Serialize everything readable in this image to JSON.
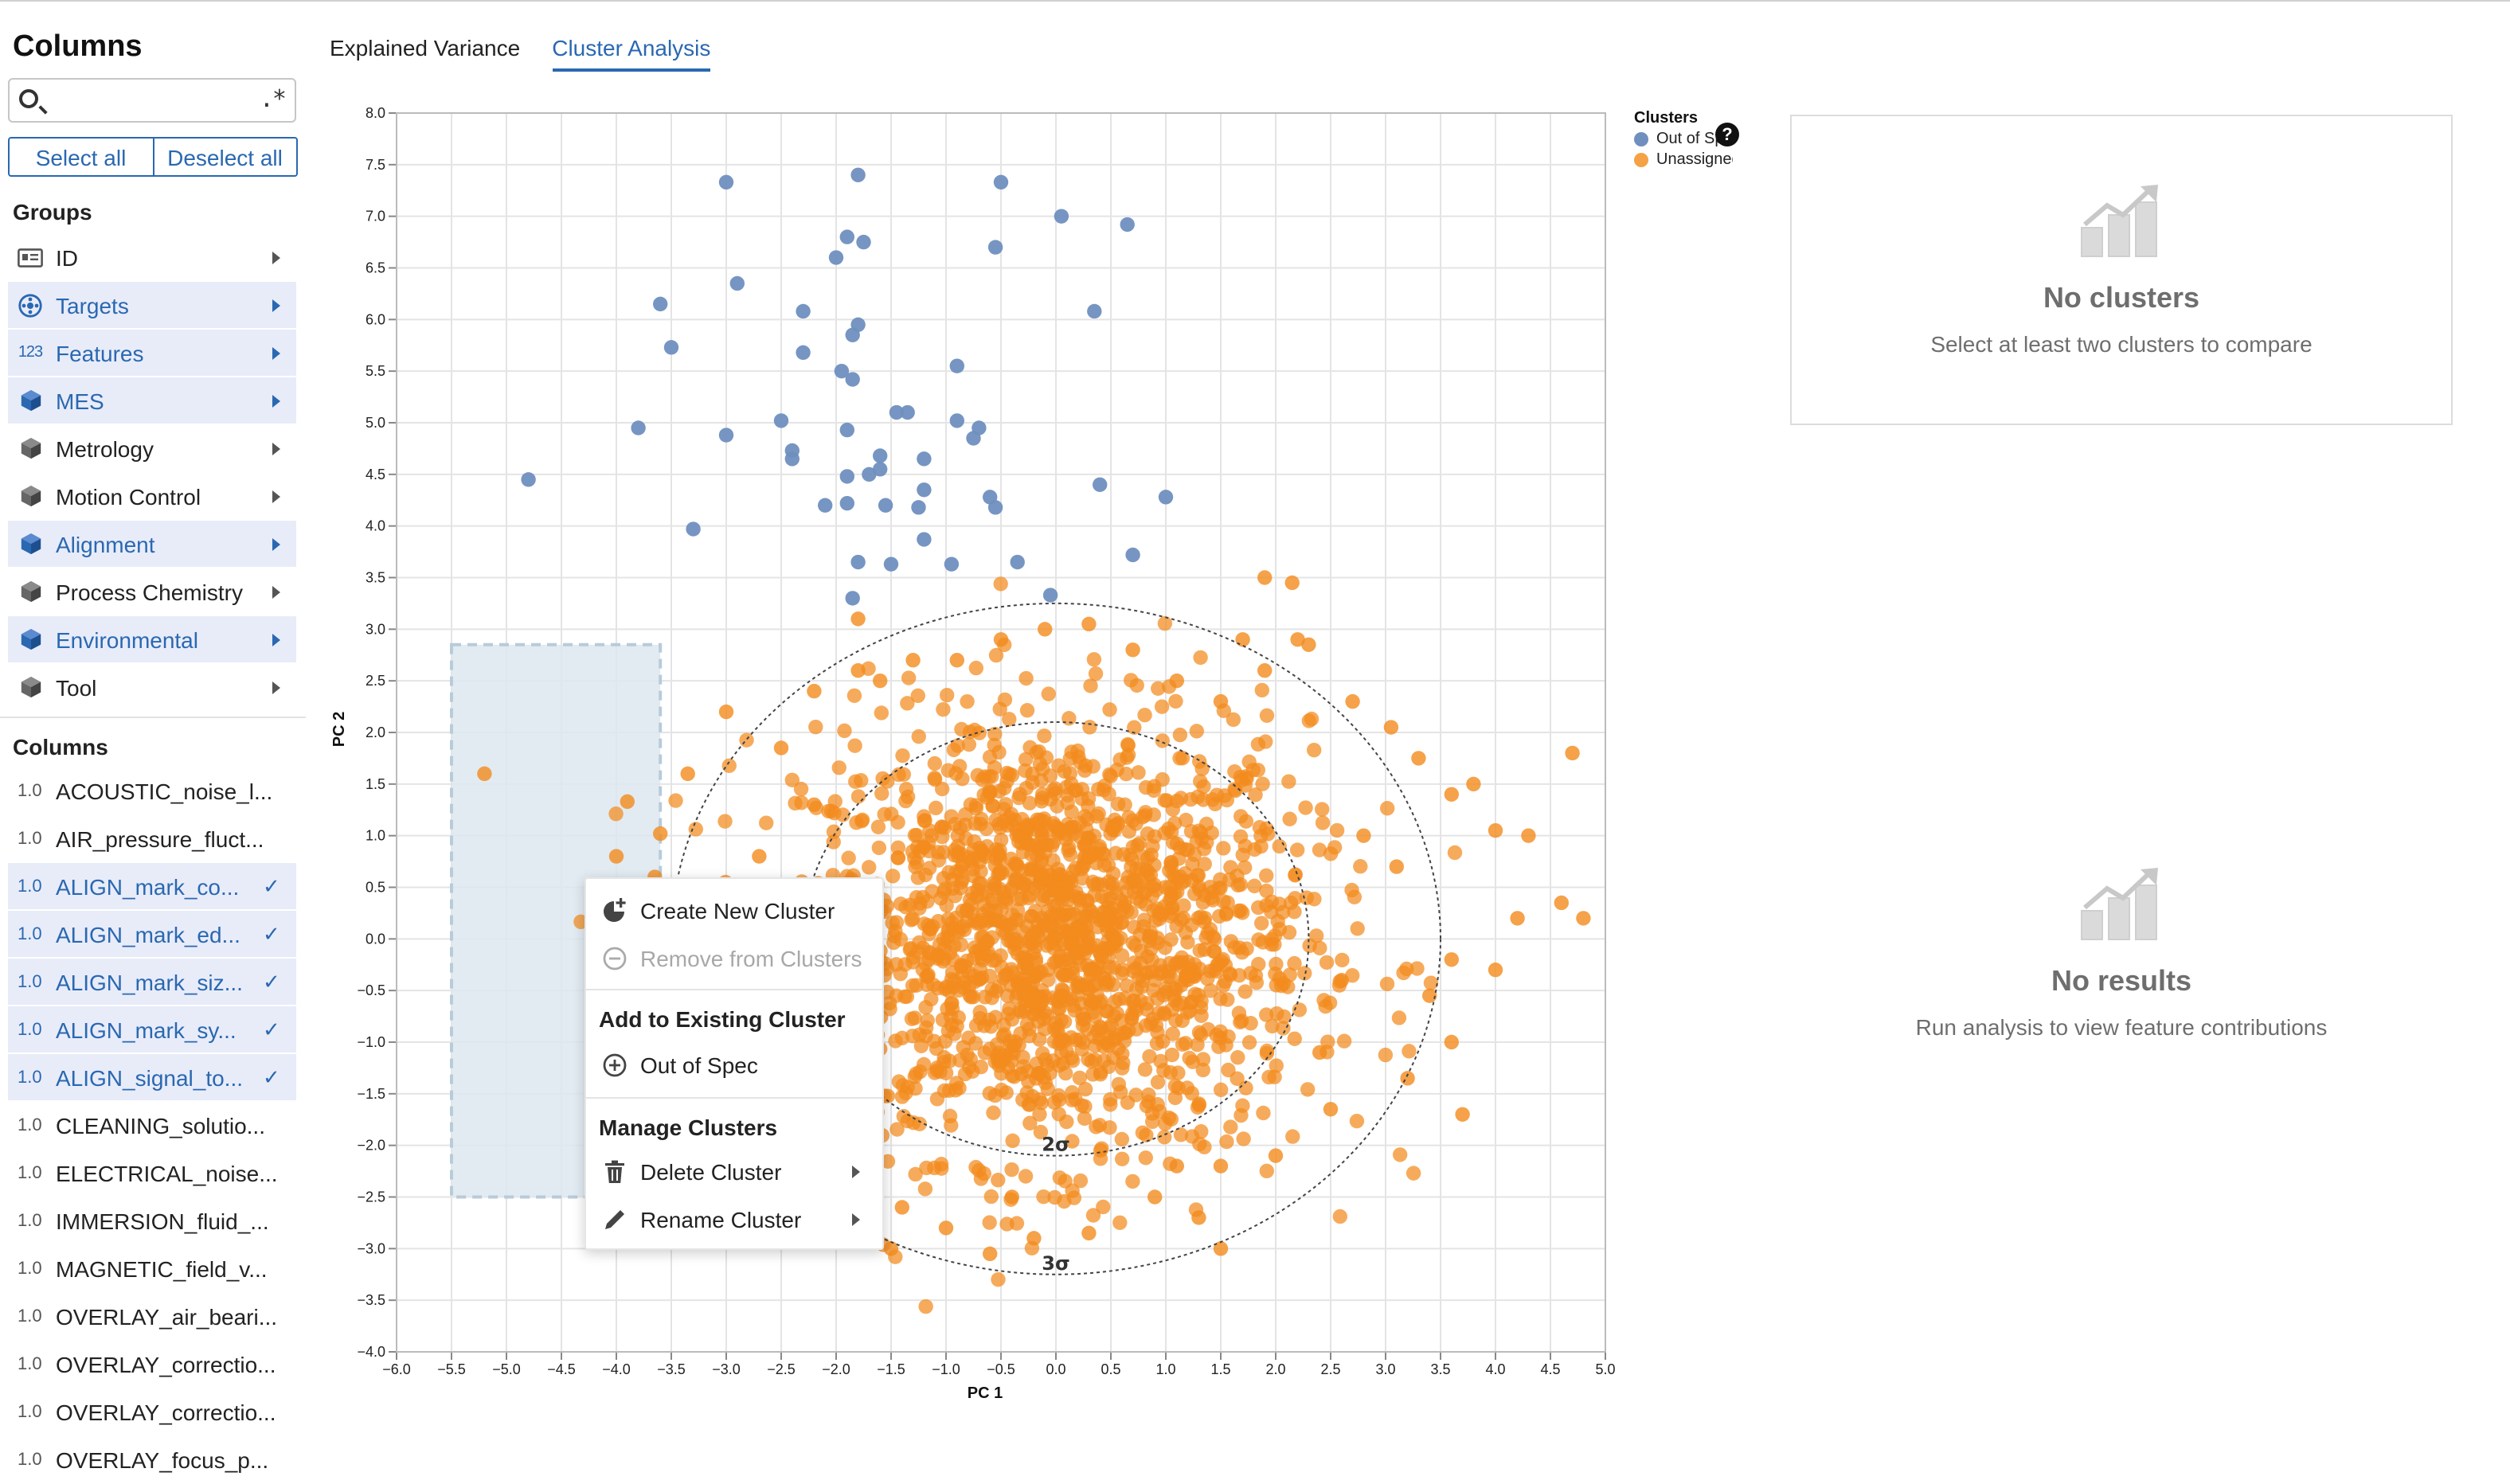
{
  "sidebar": {
    "title": "Columns",
    "search_placeholder": "",
    "regex_label": ".*",
    "select_all": "Select all",
    "deselect_all": "Deselect all",
    "groups_label": "Groups",
    "columns_label": "Columns",
    "groups": [
      {
        "label": "ID",
        "icon": "id-card-icon",
        "selected": false
      },
      {
        "label": "Targets",
        "icon": "target-icon",
        "selected": true
      },
      {
        "label": "Features",
        "icon": "numeric-icon",
        "icon_text": "123",
        "selected": true
      },
      {
        "label": "MES",
        "icon": "cube-icon",
        "selected": true
      },
      {
        "label": "Metrology",
        "icon": "cube-icon",
        "selected": false
      },
      {
        "label": "Motion Control",
        "icon": "cube-icon",
        "selected": false
      },
      {
        "label": "Alignment",
        "icon": "cube-icon",
        "selected": true
      },
      {
        "label": "Process Chemistry",
        "icon": "cube-icon",
        "selected": false
      },
      {
        "label": "Environmental",
        "icon": "cube-icon",
        "selected": true
      },
      {
        "label": "Tool",
        "icon": "cube-icon",
        "selected": false
      }
    ],
    "columns": [
      {
        "type": "1.0",
        "label": "ACOUSTIC_noise_l...",
        "selected": false
      },
      {
        "type": "1.0",
        "label": "AIR_pressure_fluct...",
        "selected": false
      },
      {
        "type": "1.0",
        "label": "ALIGN_mark_co...",
        "selected": true
      },
      {
        "type": "1.0",
        "label": "ALIGN_mark_ed...",
        "selected": true
      },
      {
        "type": "1.0",
        "label": "ALIGN_mark_siz...",
        "selected": true
      },
      {
        "type": "1.0",
        "label": "ALIGN_mark_sy...",
        "selected": true
      },
      {
        "type": "1.0",
        "label": "ALIGN_signal_to...",
        "selected": true
      },
      {
        "type": "1.0",
        "label": "CLEANING_solutio...",
        "selected": false
      },
      {
        "type": "1.0",
        "label": "ELECTRICAL_noise...",
        "selected": false
      },
      {
        "type": "1.0",
        "label": "IMMERSION_fluid_...",
        "selected": false
      },
      {
        "type": "1.0",
        "label": "MAGNETIC_field_v...",
        "selected": false
      },
      {
        "type": "1.0",
        "label": "OVERLAY_air_beari...",
        "selected": false
      },
      {
        "type": "1.0",
        "label": "OVERLAY_correctio...",
        "selected": false
      },
      {
        "type": "1.0",
        "label": "OVERLAY_correctio...",
        "selected": false
      },
      {
        "type": "1.0",
        "label": "OVERLAY_focus_p...",
        "selected": false
      }
    ]
  },
  "tabs": [
    {
      "label": "Explained Variance",
      "active": false
    },
    {
      "label": "Cluster Analysis",
      "active": true
    }
  ],
  "legend": {
    "title": "Clusters",
    "items": [
      {
        "label": "Out of Spec",
        "color": "#6f8fbf"
      },
      {
        "label": "Unassigned",
        "color": "#f5a146"
      }
    ]
  },
  "context_menu": {
    "create": "Create New Cluster",
    "remove": "Remove from Clusters",
    "add_header": "Add to Existing Cluster",
    "add_items": [
      "Out of Spec"
    ],
    "manage_header": "Manage Clusters",
    "delete": "Delete Cluster",
    "rename": "Rename Cluster"
  },
  "panels": {
    "clusters": {
      "title": "No clusters",
      "subtitle": "Select at least two clusters to compare"
    },
    "results": {
      "title": "No results",
      "subtitle": "Run analysis to view feature contributions"
    }
  },
  "colors": {
    "accent": "#2a68b1",
    "out_of_spec": "#6f8fbf",
    "unassigned": "#f28b1d",
    "selection_fill": "#dde8f0"
  },
  "chart_data": {
    "type": "scatter",
    "xlabel": "PC 1",
    "ylabel": "PC 2",
    "xlim": [
      -6.0,
      5.0
    ],
    "ylim": [
      -4.0,
      8.0
    ],
    "xticks": [
      -6.0,
      -5.5,
      -5.0,
      -4.5,
      -4.0,
      -3.5,
      -3.0,
      -2.5,
      -2.0,
      -1.5,
      -1.0,
      -0.5,
      0.0,
      0.5,
      1.0,
      1.5,
      2.0,
      2.5,
      3.0,
      3.5,
      4.0,
      4.5,
      5.0
    ],
    "yticks": [
      -4.0,
      -3.5,
      -3.0,
      -2.5,
      -2.0,
      -1.5,
      -1.0,
      -0.5,
      0.0,
      0.5,
      1.0,
      1.5,
      2.0,
      2.5,
      3.0,
      3.5,
      4.0,
      4.5,
      5.0,
      5.5,
      6.0,
      6.5,
      7.0,
      7.5,
      8.0
    ],
    "grid": true,
    "sigma_ellipses": [
      {
        "label": "2σ",
        "center": [
          0.0,
          0.0
        ],
        "rx": 2.3,
        "ry": 2.1
      },
      {
        "label": "3σ",
        "center": [
          0.0,
          0.0
        ],
        "rx": 3.5,
        "ry": 3.25
      }
    ],
    "selection_box": {
      "x": [
        -5.5,
        -3.6
      ],
      "y": [
        -2.5,
        2.85
      ]
    },
    "series": [
      {
        "name": "Out of Spec",
        "color": "#6f8fbf",
        "points": [
          [
            -4.8,
            4.45
          ],
          [
            -3.8,
            4.95
          ],
          [
            -3.3,
            3.97
          ],
          [
            -3.6,
            6.15
          ],
          [
            -3.5,
            5.73
          ],
          [
            -3.0,
            7.33
          ],
          [
            -3.0,
            4.88
          ],
          [
            -2.9,
            6.35
          ],
          [
            -2.3,
            5.68
          ],
          [
            -2.3,
            6.08
          ],
          [
            -2.5,
            5.02
          ],
          [
            -2.4,
            4.73
          ],
          [
            -2.4,
            4.65
          ],
          [
            -2.0,
            6.6
          ],
          [
            -1.9,
            6.8
          ],
          [
            -1.8,
            7.4
          ],
          [
            -1.75,
            6.75
          ],
          [
            -1.8,
            5.95
          ],
          [
            -1.85,
            5.85
          ],
          [
            -1.95,
            5.5
          ],
          [
            -1.85,
            5.42
          ],
          [
            -1.9,
            4.93
          ],
          [
            -1.9,
            4.48
          ],
          [
            -2.1,
            4.2
          ],
          [
            -1.9,
            4.22
          ],
          [
            -1.7,
            4.5
          ],
          [
            -1.6,
            4.55
          ],
          [
            -1.6,
            4.68
          ],
          [
            -1.55,
            4.2
          ],
          [
            -1.45,
            5.1
          ],
          [
            -1.35,
            5.1
          ],
          [
            -1.2,
            4.65
          ],
          [
            -1.2,
            4.35
          ],
          [
            -1.25,
            4.18
          ],
          [
            -1.2,
            3.87
          ],
          [
            -1.8,
            3.65
          ],
          [
            -1.5,
            3.63
          ],
          [
            -0.9,
            5.55
          ],
          [
            -0.9,
            5.02
          ],
          [
            -0.7,
            4.95
          ],
          [
            -0.75,
            4.85
          ],
          [
            -0.6,
            4.28
          ],
          [
            -0.55,
            4.18
          ],
          [
            -0.95,
            3.63
          ],
          [
            -0.55,
            6.7
          ],
          [
            -0.5,
            7.33
          ],
          [
            -0.35,
            3.65
          ],
          [
            0.05,
            7.0
          ],
          [
            0.35,
            6.08
          ],
          [
            0.65,
            6.92
          ],
          [
            0.4,
            4.4
          ],
          [
            1.0,
            4.28
          ],
          [
            0.7,
            3.72
          ],
          [
            -1.85,
            3.3
          ],
          [
            -0.05,
            3.33
          ]
        ]
      },
      {
        "name": "Unassigned",
        "color": "#f28b1d",
        "cloud": {
          "center": [
            0.0,
            0.0
          ],
          "sigma": [
            1.15,
            1.05
          ],
          "count": 1800
        },
        "points": [
          [
            -5.2,
            1.6
          ],
          [
            -3.9,
            1.33
          ],
          [
            -3.6,
            1.02
          ],
          [
            -4.0,
            0.8
          ],
          [
            -3.65,
            0.6
          ],
          [
            -3.35,
            1.6
          ],
          [
            -3.0,
            2.2
          ],
          [
            -2.5,
            1.85
          ],
          [
            -2.2,
            2.4
          ],
          [
            -1.8,
            2.6
          ],
          [
            -1.6,
            2.5
          ],
          [
            -1.8,
            3.1
          ],
          [
            -1.3,
            2.7
          ],
          [
            -0.9,
            2.7
          ],
          [
            -0.5,
            2.9
          ],
          [
            -0.1,
            3.0
          ],
          [
            0.3,
            3.05
          ],
          [
            0.7,
            2.8
          ],
          [
            1.1,
            2.5
          ],
          [
            1.5,
            2.3
          ],
          [
            1.9,
            2.6
          ],
          [
            2.2,
            2.9
          ],
          [
            2.7,
            2.3
          ],
          [
            3.05,
            2.05
          ],
          [
            3.3,
            1.75
          ],
          [
            3.6,
            1.4
          ],
          [
            3.8,
            1.5
          ],
          [
            4.0,
            1.05
          ],
          [
            4.3,
            1.0
          ],
          [
            4.6,
            0.35
          ],
          [
            4.8,
            0.2
          ],
          [
            4.7,
            1.8
          ],
          [
            4.2,
            0.2
          ],
          [
            4.0,
            -0.3
          ],
          [
            3.6,
            -0.2
          ],
          [
            3.4,
            -0.55
          ],
          [
            3.6,
            -1.0
          ],
          [
            3.7,
            -1.7
          ],
          [
            3.2,
            -1.35
          ],
          [
            2.5,
            -1.65
          ],
          [
            2.4,
            -1.1
          ],
          [
            2.0,
            -2.1
          ],
          [
            1.5,
            -2.2
          ],
          [
            1.1,
            -2.2
          ],
          [
            1.3,
            -2.7
          ],
          [
            1.5,
            -3.0
          ],
          [
            0.9,
            -2.5
          ],
          [
            0.3,
            -2.85
          ],
          [
            -0.2,
            -2.9
          ],
          [
            -0.6,
            -3.05
          ],
          [
            -1.0,
            -2.8
          ],
          [
            -1.4,
            -2.6
          ],
          [
            -1.5,
            -3.0
          ],
          [
            -1.9,
            -2.4
          ],
          [
            -2.1,
            -2.0
          ],
          [
            -2.3,
            -1.6
          ],
          [
            -2.6,
            -1.1
          ],
          [
            -2.8,
            -0.6
          ],
          [
            -3.0,
            -0.3
          ],
          [
            1.9,
            3.5
          ],
          [
            2.15,
            3.45
          ],
          [
            2.3,
            2.85
          ],
          [
            -2.2,
            1.3
          ],
          [
            2.8,
            1.0
          ],
          [
            3.1,
            0.7
          ],
          [
            2.6,
            -0.4
          ],
          [
            -2.7,
            0.8
          ],
          [
            -3.2,
            0.2
          ],
          [
            1.7,
            2.9
          ],
          [
            -0.4,
            -2.5
          ]
        ]
      }
    ]
  }
}
